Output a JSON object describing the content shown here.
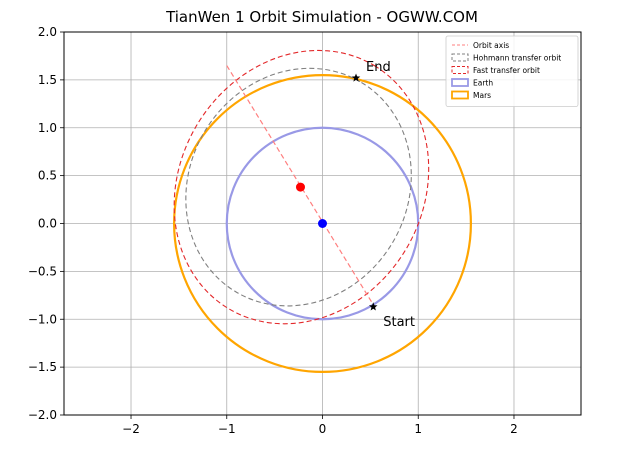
{
  "chart_data": {
    "type": "line",
    "title": "TianWen 1 Orbit Simulation - OGWW.COM",
    "xlabel": "",
    "ylabel": "",
    "xlim": [
      -2.7,
      2.7
    ],
    "ylim": [
      -2.0,
      2.0
    ],
    "xticks": [
      -2,
      -1,
      0,
      1,
      2
    ],
    "yticks": [
      -2.0,
      -1.5,
      -1.0,
      -0.5,
      0.0,
      0.5,
      1.0,
      1.5,
      2.0
    ],
    "xtick_labels": [
      "−2",
      "−1",
      "0",
      "1",
      "2"
    ],
    "ytick_labels": [
      "−2.0",
      "−1.5",
      "−1.0",
      "−0.5",
      "0.0",
      "0.5",
      "1.0",
      "1.5",
      "2.0"
    ],
    "grid": true,
    "legend_position": "top-right",
    "legend": [
      {
        "name": "Orbit axis",
        "color": "#ff7f7f",
        "style": "dashed"
      },
      {
        "name": "Hohmann transfer orbit",
        "color": "#808080",
        "style": "dashed"
      },
      {
        "name": "Fast transfer orbit",
        "color": "#e3282a",
        "style": "dashed"
      },
      {
        "name": "Earth",
        "color": "#9999e6",
        "style": "solid"
      },
      {
        "name": "Mars",
        "color": "#ffa500",
        "style": "solid"
      }
    ],
    "orbits": {
      "earth": {
        "center": [
          0,
          0
        ],
        "radius": 1.0,
        "color": "#9999e6"
      },
      "mars": {
        "center": [
          0,
          0
        ],
        "radius": 1.55,
        "color": "#ffa500"
      },
      "hohmann": {
        "center": [
          -0.25,
          0.38
        ],
        "semi_major": 1.275,
        "semi_minor": 1.14,
        "angle_deg": -59,
        "color": "#808080"
      },
      "fast": {
        "center": [
          -0.22,
          0.38
        ],
        "semi_major": 1.48,
        "semi_minor": 1.27,
        "angle_deg": -59,
        "color": "#e3282a"
      }
    },
    "orbit_axis": {
      "from": [
        -1.0,
        1.65
      ],
      "to": [
        0.55,
        -0.88
      ],
      "color": "#ff7f7f"
    },
    "points": [
      {
        "name": "sun",
        "x": 0.0,
        "y": 0.0,
        "color": "#0000ff"
      },
      {
        "name": "transfer-focus",
        "x": -0.23,
        "y": 0.38,
        "color": "#ff0000"
      }
    ],
    "markers": [
      {
        "label": "Start",
        "x": 0.53,
        "y": -0.87
      },
      {
        "label": "End",
        "x": 0.35,
        "y": 1.52
      }
    ]
  }
}
